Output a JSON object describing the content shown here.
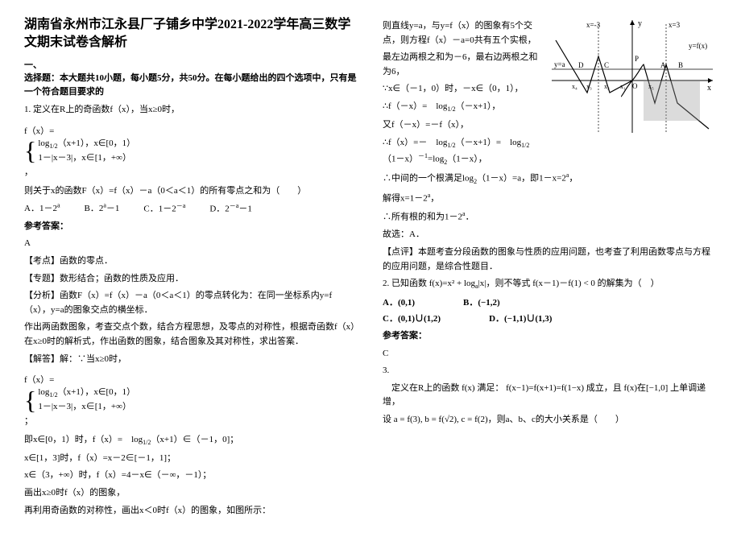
{
  "left": {
    "title": "湖南省永州市江永县厂子铺乡中学2021-2022学年高三数学文期末试卷含解析",
    "section_num": "一、",
    "section_desc": "选择题：本大题共10小题，每小题5分，共50分。在每小题给出的四个选项中，只有是一个符合题目要求的",
    "q1_stem": "1. 定义在R上的奇函数f（x），当x≥0时，",
    "q1_fx_prefix": "f（x）=",
    "q1_case1": "log<sub>1/2</sub>（x+1），x∈[0，1）",
    "q1_case2": "1－|x－3|，x∈[1，+∞）",
    "q1_line2": "则关于x的函数F（x）=f（x）－a（0＜a＜1）的所有零点之和为（　　）",
    "q1_optA": "A．1－2<sup>a</sup>",
    "q1_optB": "B．2<sup>a</sup>－1",
    "q1_optC": "C．1－2<sup>－a</sup>",
    "q1_optD": "D．2<sup>－a</sup>－1",
    "ans_label": "参考答案：",
    "q1_ans": "A",
    "q1_kd_label": "【考点】函数的零点．",
    "q1_zt_label": "【专题】数形结合；函数的性质及应用．",
    "q1_fx_label": "【分析】函数F（x）=f（x）－a（0＜a＜1）的零点转化为：在同一坐标系内y=f（x），y=a的图象交点的横坐标．",
    "q1_fx_l2": "作出两函数图象，考查交点个数，结合方程思想，及零点的对称性，根据奇函数f（x）在x≥0时的解析式，作出函数的图象，结合图象及其对称性，求出答案．",
    "q1_jd_label": "【解答】解：∵当x≥0时，",
    "q1_jd_fx": "f（x）=",
    "q1_jd_c1": "log<sub>1/2</sub>（x+1），x∈[0，1）",
    "q1_jd_c2": "1－|x－3|，x∈[1，+∞）",
    "q1_jd_l1": "即x∈[0，1）时，f（x）=　log<sub>1/2</sub>（x+1）∈（－1，0]；",
    "q1_jd_l2": "x∈[1，3]时，f（x）=x－2∈[－1，1]；",
    "q1_jd_l3": "x∈（3，+∞）时，f（x）=4－x∈（－∞，－1）；",
    "q1_jd_l4": "画出x≥0时f（x）的图象，",
    "q1_jd_l5": "再利用奇函数的对称性，画出x＜0时f（x）的图象，如图所示："
  },
  "right": {
    "r1": "则直线y=a，与y=f（x）的图象有5个交点，则方程f（x）－a=0共有五个实根，",
    "r2": "最左边两根之和为－6，最右边两根之和为6，",
    "r3": "∵x∈（－1，0）时，－x∈（0，1），",
    "r4": "∴f（－x）=　log<sub>1/2</sub>（－x+1），",
    "r5": "又f（－x）=－f（x），",
    "r6": "∴f（x）=－　log<sub>1/2</sub>（－x+1）=　log<sub>1/2</sub>（1－x）<sup>－1</sup>=log<sub>2</sub>（1－x），",
    "r7": "∴中间的一个根满足log<sub>2</sub>（1－x）=a，即1－x=2<sup>a</sup>，",
    "r8": "解得x=1－2<sup>a</sup>，",
    "r9": "∴所有根的和为1－2<sup>a</sup>．",
    "r10": "故选：A．",
    "r11_label": "【点评】本题考查分段函数的图象与性质的应用问题，也考查了利用函数零点与方程的应用问题，是综合性题目．",
    "q2_stem": "2. 已知函数 f(x)=x² + log<sub>a</sub>|x|，则不等式 f(x－1)－f(1) < 0 的解集为（　）",
    "q2_A": "A．(0,1)",
    "q2_B": "B．(−1,2)",
    "q2_C": "C．(0,1)∪(1,2)",
    "q2_D": "D．(−1,1)∪(1,3)",
    "q2_ans_label": "参考答案：",
    "q2_ans": "C",
    "q3_stem": "3.",
    "q3_l1": "　定义在R上的函数 f(x) 满足： f(x−1)=f(x+1)=f(1−x) 成立，且 f(x)在[−1,0] 上单调递增，",
    "q3_l2": "设 a = f(3), b = f(√2), c = f(2)，则a、b、c的大小关系是（　　）"
  },
  "graph": {
    "bg": "#ffffff",
    "axis": "#000000",
    "curve": "#000000",
    "label_y": "y",
    "label_x": "x",
    "label_yfx": "y=f(x)",
    "label_ya": "y=a",
    "label_P": "P",
    "label_A": "A",
    "label_B": "B",
    "label_C": "C",
    "label_D": "D",
    "label_xn3": "x=-3",
    "label_x3": "x=3",
    "x_ticks": [
      "x₄",
      "x₃",
      "x₂",
      "x₁",
      "O",
      "x₅"
    ],
    "x_range": [
      -7,
      7
    ],
    "y_range": [
      -1.6,
      1.6
    ]
  }
}
